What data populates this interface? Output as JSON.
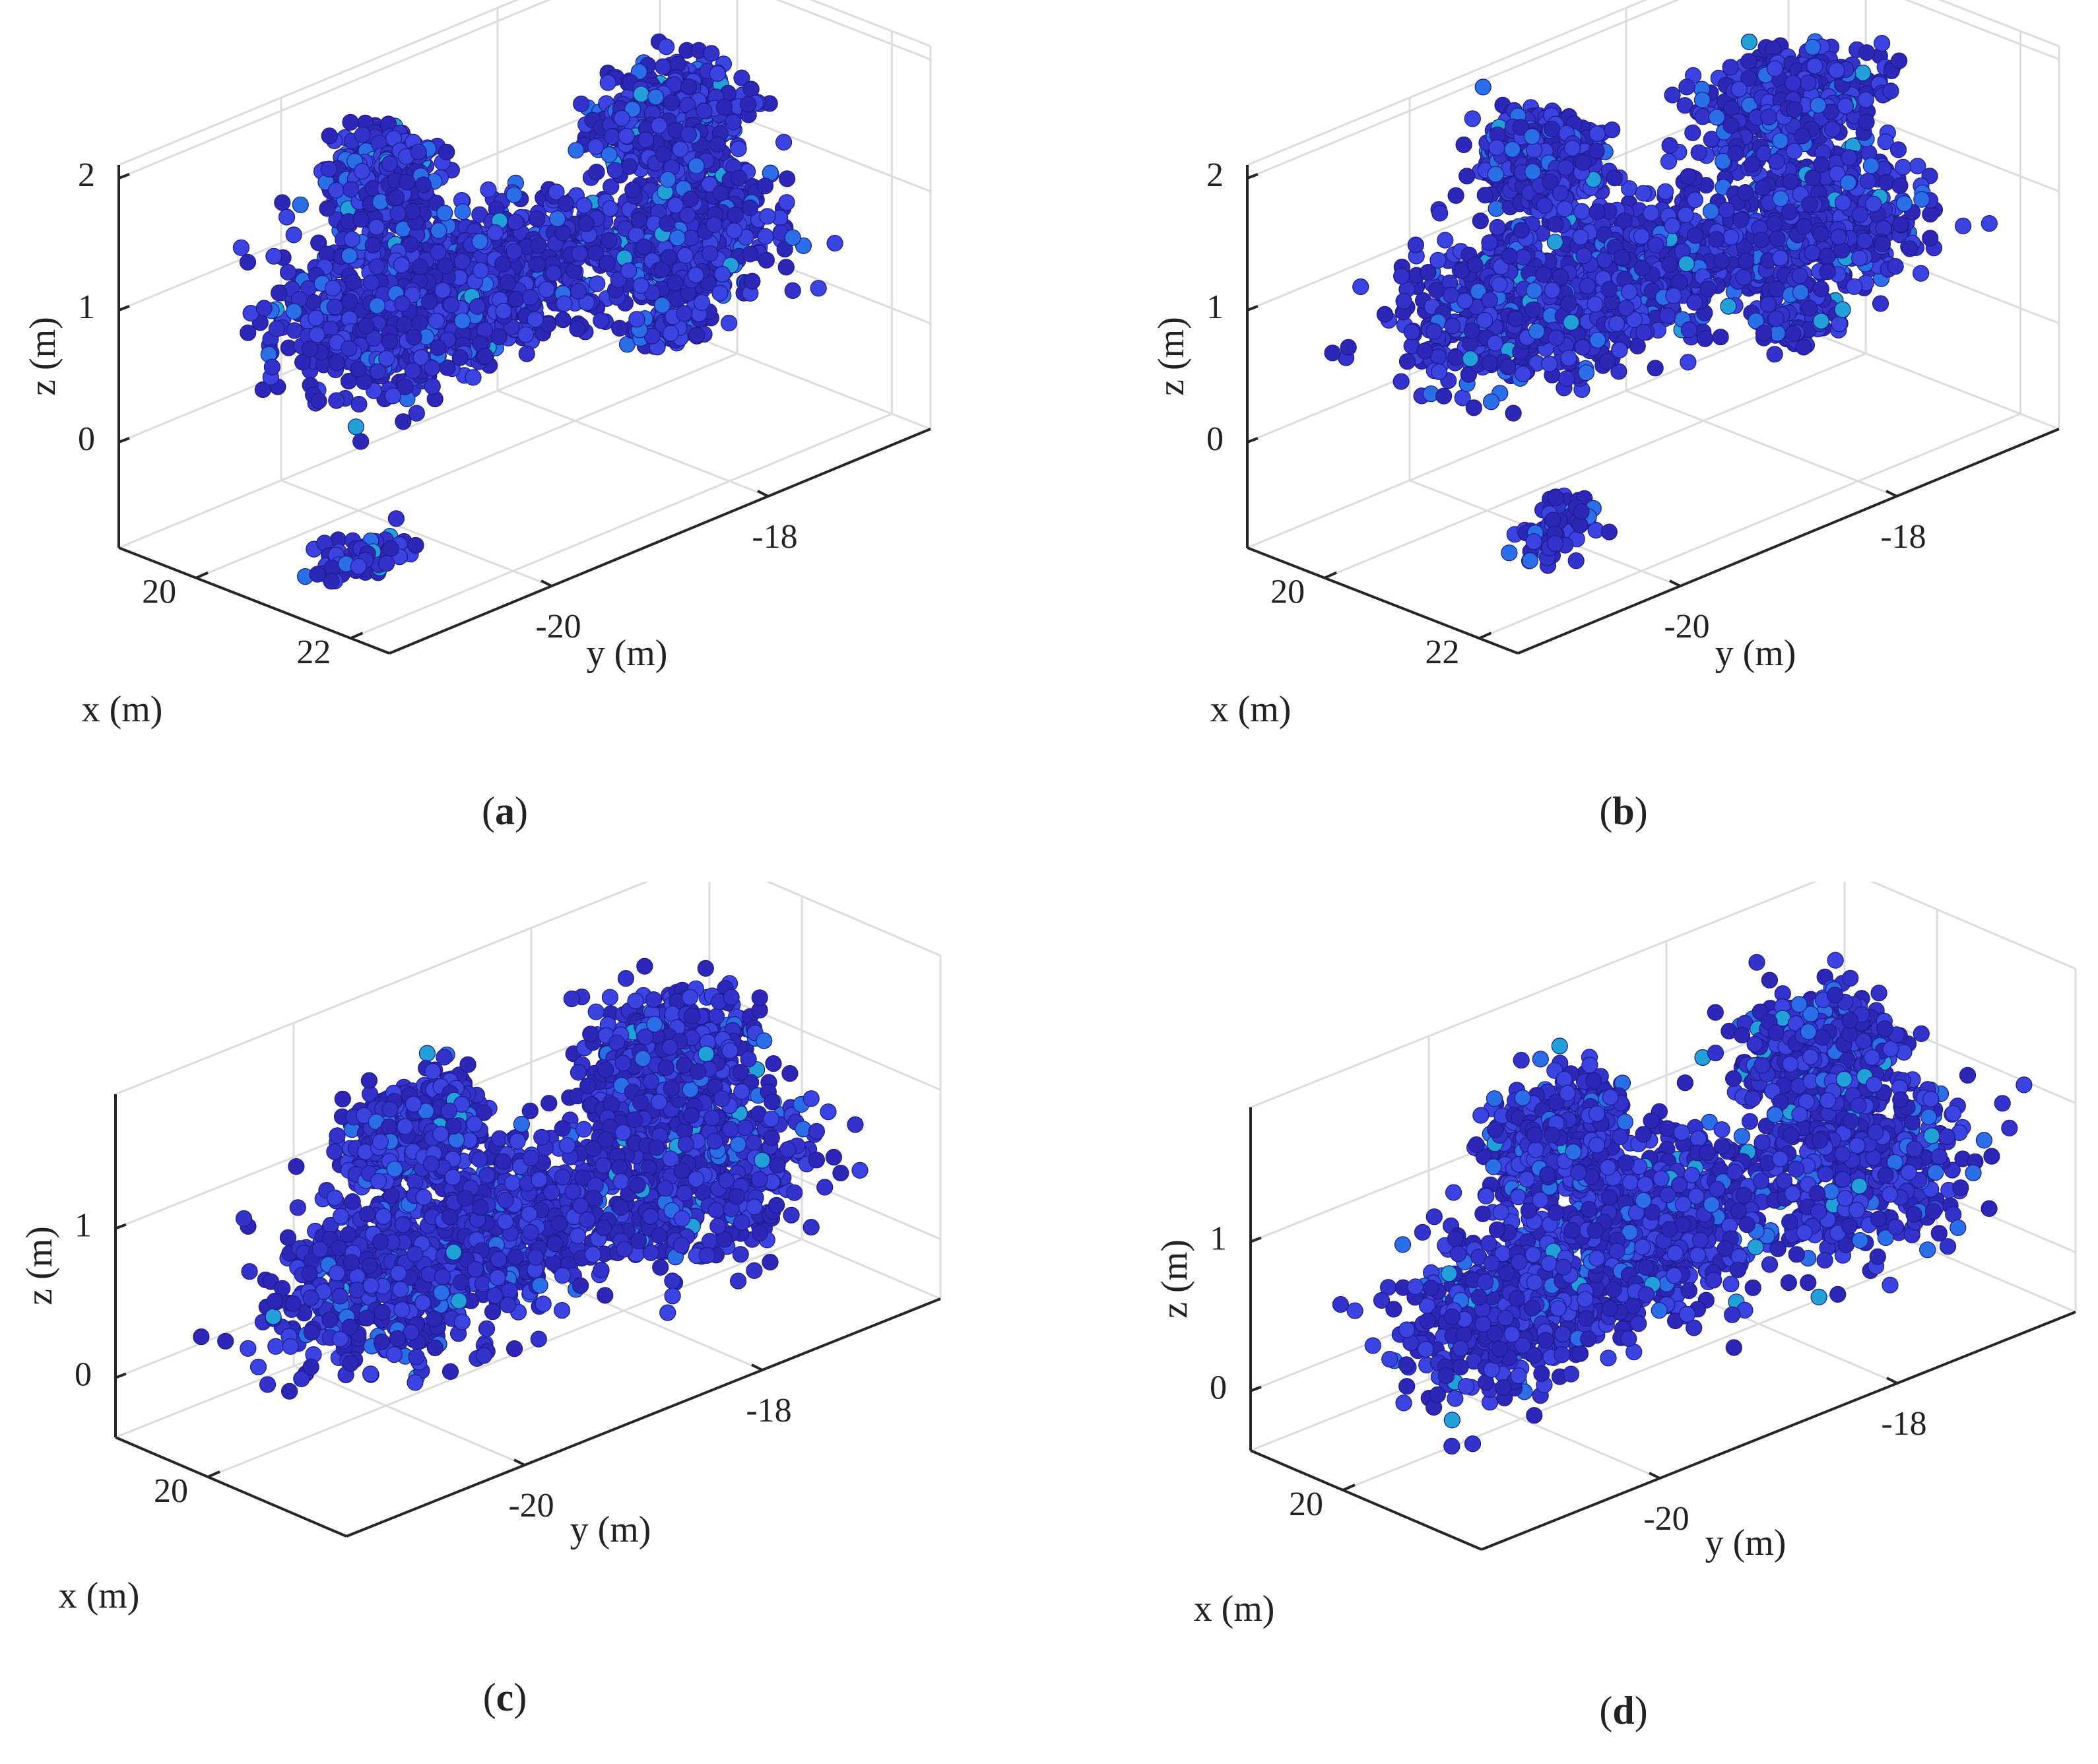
{
  "chart_data": [
    {
      "type": "scatter",
      "caption": "a",
      "xlabel": "x (m)",
      "ylabel": "y (m)",
      "zlabel": "z (m)",
      "xlim": [
        19,
        22.5
      ],
      "ylim": [
        -21.5,
        -16.5
      ],
      "zlim": [
        -0.8,
        2.1
      ],
      "x_ticks": [
        "20",
        "22"
      ],
      "y_ticks": [
        "-20",
        "-18"
      ],
      "z_ticks": [
        "0",
        "1",
        "2"
      ],
      "grid": true,
      "colormap": "parula",
      "point_colors": [
        "#2d27b8",
        "#3333cc",
        "#3b44e0",
        "#2a6fe8",
        "#22a0d8"
      ],
      "blobs": [
        {
          "x": 20.6,
          "y": -20.2,
          "z": 0.9,
          "sx": 1.0,
          "sy": 0.9,
          "sz": 0.55
        },
        {
          "x": 20.3,
          "y": -19.0,
          "z": 0.65,
          "sx": 0.9,
          "sy": 1.0,
          "sz": 0.5
        },
        {
          "x": 20.7,
          "y": -17.6,
          "z": 0.6,
          "sx": 0.9,
          "sy": 0.9,
          "sz": 0.55
        },
        {
          "x": 20.0,
          "y": -19.8,
          "z": 1.65,
          "sx": 0.45,
          "sy": 0.35,
          "sz": 0.35
        },
        {
          "x": 20.4,
          "y": -17.4,
          "z": 1.4,
          "sx": 0.6,
          "sy": 0.6,
          "sz": 0.35
        }
      ],
      "outliers": [
        {
          "x": 21.2,
          "y": -20.8,
          "z": -0.6,
          "sx": 0.35,
          "sy": 0.45,
          "sz": 0.12
        },
        {
          "x": 20.2,
          "y": -17.3,
          "z": -0.3,
          "sx": 0.3,
          "sy": 0.3,
          "sz": 0.1
        },
        {
          "x": 19.8,
          "y": -16.6,
          "z": -0.1,
          "sx": 0.25,
          "sy": 0.2,
          "sz": 0.15
        }
      ],
      "seed": 11
    },
    {
      "type": "scatter",
      "caption": "b",
      "xlabel": "x (m)",
      "ylabel": "y (m)",
      "zlabel": "z (m)",
      "xlim": [
        19,
        22.5
      ],
      "ylim": [
        -21.5,
        -16.5
      ],
      "zlim": [
        -0.8,
        2.1
      ],
      "x_ticks": [
        "20",
        "22"
      ],
      "y_ticks": [
        "-20",
        "-18"
      ],
      "z_ticks": [
        "0",
        "1",
        "2"
      ],
      "grid": true,
      "colormap": "parula",
      "point_colors": [
        "#2d27b8",
        "#3333cc",
        "#3b44e0",
        "#2a6fe8",
        "#22a0d8"
      ],
      "blobs": [
        {
          "x": 20.6,
          "y": -20.1,
          "z": 0.95,
          "sx": 1.05,
          "sy": 0.95,
          "sz": 0.6
        },
        {
          "x": 20.3,
          "y": -18.9,
          "z": 0.7,
          "sx": 0.9,
          "sy": 1.0,
          "sz": 0.55
        },
        {
          "x": 20.7,
          "y": -17.5,
          "z": 0.65,
          "sx": 0.9,
          "sy": 0.95,
          "sz": 0.55
        },
        {
          "x": 20.1,
          "y": -19.6,
          "z": 1.75,
          "sx": 0.55,
          "sy": 0.4,
          "sz": 0.35
        },
        {
          "x": 20.4,
          "y": -17.5,
          "z": 1.55,
          "sx": 0.6,
          "sy": 0.65,
          "sz": 0.35
        }
      ],
      "outliers": [
        {
          "x": 21.3,
          "y": -20.3,
          "z": -0.55,
          "sx": 0.35,
          "sy": 0.35,
          "sz": 0.25
        },
        {
          "x": 20.1,
          "y": -17.2,
          "z": -0.3,
          "sx": 0.3,
          "sy": 0.3,
          "sz": 0.12
        },
        {
          "x": 19.6,
          "y": -16.6,
          "z": 0.0,
          "sx": 0.25,
          "sy": 0.2,
          "sz": 0.15
        }
      ],
      "seed": 23
    },
    {
      "type": "scatter",
      "caption": "c",
      "xlabel": "x (m)",
      "ylabel": "y (m)",
      "zlabel": "z (m)",
      "xlim": [
        19,
        21.5
      ],
      "ylim": [
        -21.5,
        -16.5
      ],
      "zlim": [
        -0.4,
        1.9
      ],
      "x_ticks": [
        "20"
      ],
      "y_ticks": [
        "-20",
        "-18"
      ],
      "z_ticks": [
        "0",
        "1"
      ],
      "grid": true,
      "colormap": "parula",
      "point_colors": [
        "#2d27b8",
        "#3333cc",
        "#3b44e0",
        "#2a6fe8",
        "#22a0d8"
      ],
      "blobs": [
        {
          "x": 20.3,
          "y": -20.2,
          "z": 0.6,
          "sx": 0.75,
          "sy": 0.95,
          "sz": 0.6
        },
        {
          "x": 20.1,
          "y": -19.0,
          "z": 0.55,
          "sx": 0.7,
          "sy": 0.9,
          "sz": 0.5
        },
        {
          "x": 20.3,
          "y": -17.6,
          "z": 0.5,
          "sx": 0.7,
          "sy": 0.9,
          "sz": 0.6
        },
        {
          "x": 19.9,
          "y": -19.7,
          "z": 1.3,
          "sx": 0.4,
          "sy": 0.5,
          "sz": 0.35
        },
        {
          "x": 20.1,
          "y": -17.7,
          "z": 1.25,
          "sx": 0.5,
          "sy": 0.6,
          "sz": 0.4
        }
      ],
      "outliers": [],
      "seed": 37
    },
    {
      "type": "scatter",
      "caption": "d",
      "xlabel": "x (m)",
      "ylabel": "y (m)",
      "zlabel": "z (m)",
      "xlim": [
        19,
        21.5
      ],
      "ylim": [
        -21.5,
        -16.5
      ],
      "zlim": [
        -0.4,
        1.9
      ],
      "x_ticks": [
        "20"
      ],
      "y_ticks": [
        "-20",
        "-18"
      ],
      "z_ticks": [
        "0",
        "1"
      ],
      "grid": true,
      "colormap": "parula",
      "point_colors": [
        "#2d27b8",
        "#3333cc",
        "#3b44e0",
        "#2a6fe8",
        "#22a0d8"
      ],
      "blobs": [
        {
          "x": 20.3,
          "y": -20.2,
          "z": 0.6,
          "sx": 0.75,
          "sy": 0.95,
          "sz": 0.6
        },
        {
          "x": 20.1,
          "y": -19.0,
          "z": 0.6,
          "sx": 0.7,
          "sy": 0.9,
          "sz": 0.55
        },
        {
          "x": 20.3,
          "y": -17.5,
          "z": 0.55,
          "sx": 0.7,
          "sy": 0.95,
          "sz": 0.6
        },
        {
          "x": 19.9,
          "y": -19.6,
          "z": 1.35,
          "sx": 0.45,
          "sy": 0.5,
          "sz": 0.35
        },
        {
          "x": 20.1,
          "y": -17.6,
          "z": 1.3,
          "sx": 0.5,
          "sy": 0.6,
          "sz": 0.4
        }
      ],
      "outliers": [],
      "seed": 53
    }
  ]
}
